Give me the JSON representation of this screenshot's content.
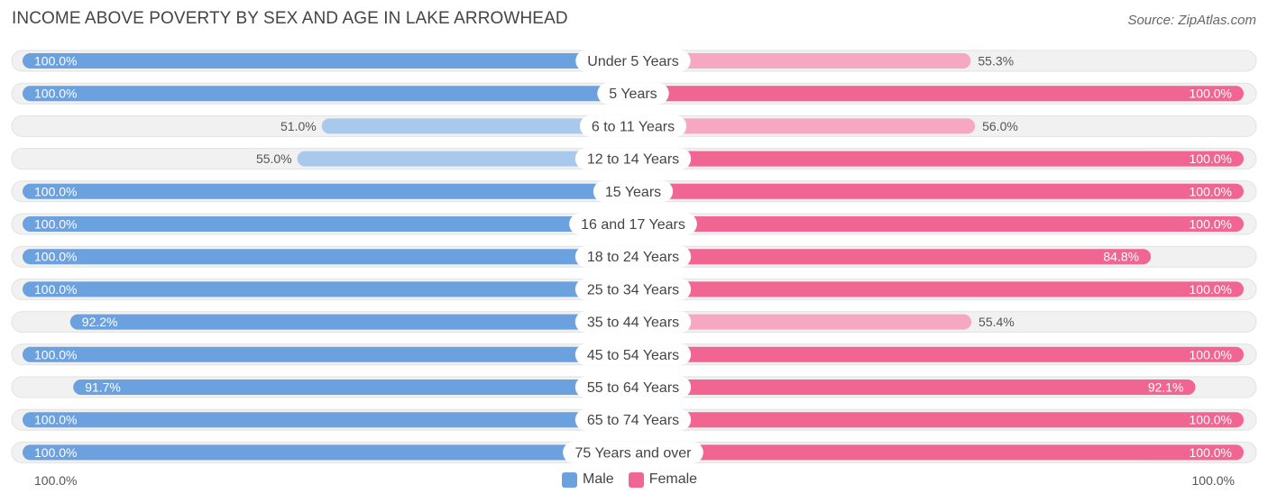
{
  "header": {
    "title": "INCOME ABOVE POVERTY BY SEX AND AGE IN LAKE ARROWHEAD",
    "source": "Source: ZipAtlas.com"
  },
  "axis": {
    "left_label": "100.0%",
    "right_label": "100.0%"
  },
  "legend": {
    "male": "Male",
    "female": "Female"
  },
  "colors": {
    "male_full": "#6aa1de",
    "male_light": "#a9c9ec",
    "female_full": "#f06591",
    "female_light": "#f6a8c3",
    "track": "#f1f1f1"
  },
  "chart_data": {
    "type": "bar",
    "orientation": "diverging-horizontal",
    "title": "INCOME ABOVE POVERTY BY SEX AND AGE IN LAKE ARROWHEAD",
    "categories": [
      "Under 5 Years",
      "5 Years",
      "6 to 11 Years",
      "12 to 14 Years",
      "15 Years",
      "16 and 17 Years",
      "18 to 24 Years",
      "25 to 34 Years",
      "35 to 44 Years",
      "45 to 54 Years",
      "55 to 64 Years",
      "65 to 74 Years",
      "75 Years and over"
    ],
    "series": [
      {
        "name": "Male",
        "values": [
          100.0,
          100.0,
          51.0,
          55.0,
          100.0,
          100.0,
          100.0,
          100.0,
          92.2,
          100.0,
          91.7,
          100.0,
          100.0
        ]
      },
      {
        "name": "Female",
        "values": [
          55.3,
          100.0,
          56.0,
          100.0,
          100.0,
          100.0,
          84.8,
          100.0,
          55.4,
          100.0,
          92.1,
          100.0,
          100.0
        ]
      }
    ],
    "xlim": [
      0,
      100
    ],
    "unit": "%",
    "legend_position": "bottom-center"
  }
}
